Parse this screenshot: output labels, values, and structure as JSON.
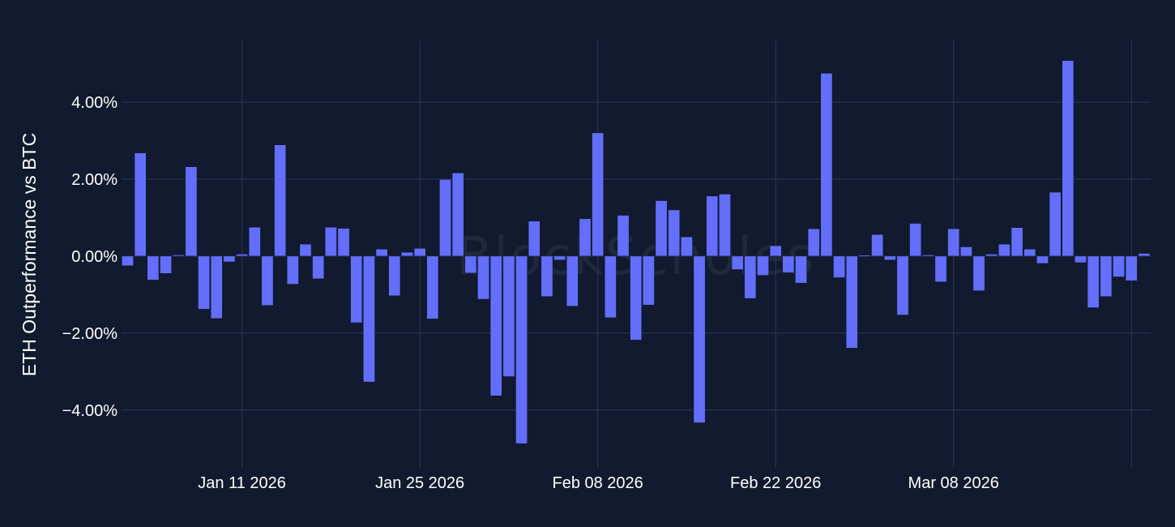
{
  "colors": {
    "background": "#111a2e",
    "grid": "#283452",
    "bar": "#636efa",
    "text": "#ffffff",
    "watermark": "#2b3448"
  },
  "watermark": "BlockScholes",
  "chart_data": {
    "type": "bar",
    "title": "",
    "ylabel": "ETH Outperformance vs BTC",
    "xlabel": "",
    "start_date": "2026-01-02",
    "ylim": [
      -5.5,
      5.6
    ],
    "yticks": [
      -4,
      -2,
      0,
      2,
      4
    ],
    "ytick_labels": [
      "−4.00%",
      "−2.00%",
      "0.00%",
      "2.00%",
      "4.00%"
    ],
    "xticks": [
      "2026-01-11",
      "2026-01-25",
      "2026-02-08",
      "2026-02-22",
      "2026-03-08",
      "2026-03-22"
    ],
    "xtick_labels": [
      "Jan 11 2026",
      "Jan 25 2026",
      "Feb 08 2026",
      "Feb 22 2026",
      "Mar 08 2026",
      ""
    ],
    "grid": true,
    "series": [
      {
        "name": "",
        "values": [
          -0.25,
          2.68,
          -0.62,
          -0.45,
          0.03,
          2.32,
          -1.38,
          -1.62,
          -0.15,
          0.05,
          0.75,
          -1.28,
          2.89,
          -0.73,
          0.31,
          -0.59,
          0.75,
          0.72,
          -1.73,
          -3.27,
          0.18,
          -1.03,
          0.1,
          0.2,
          -1.63,
          1.99,
          2.16,
          -0.44,
          -1.12,
          -3.63,
          -3.13,
          -4.87,
          0.91,
          -1.05,
          -0.1,
          -1.3,
          0.97,
          3.2,
          -1.6,
          1.06,
          -2.18,
          -1.27,
          1.44,
          1.2,
          0.5,
          -4.33,
          1.56,
          1.61,
          -0.35,
          -1.1,
          -0.5,
          0.27,
          -0.43,
          -0.7,
          0.71,
          4.75,
          -0.56,
          -2.39,
          0.02,
          0.56,
          -0.1,
          -1.53,
          0.85,
          0.03,
          -0.67,
          0.71,
          0.24,
          -0.9,
          0.05,
          0.31,
          0.74,
          0.18,
          -0.19,
          1.66,
          5.08,
          -0.17,
          -1.34,
          -1.05,
          -0.54,
          -0.64,
          0.07
        ]
      }
    ]
  }
}
